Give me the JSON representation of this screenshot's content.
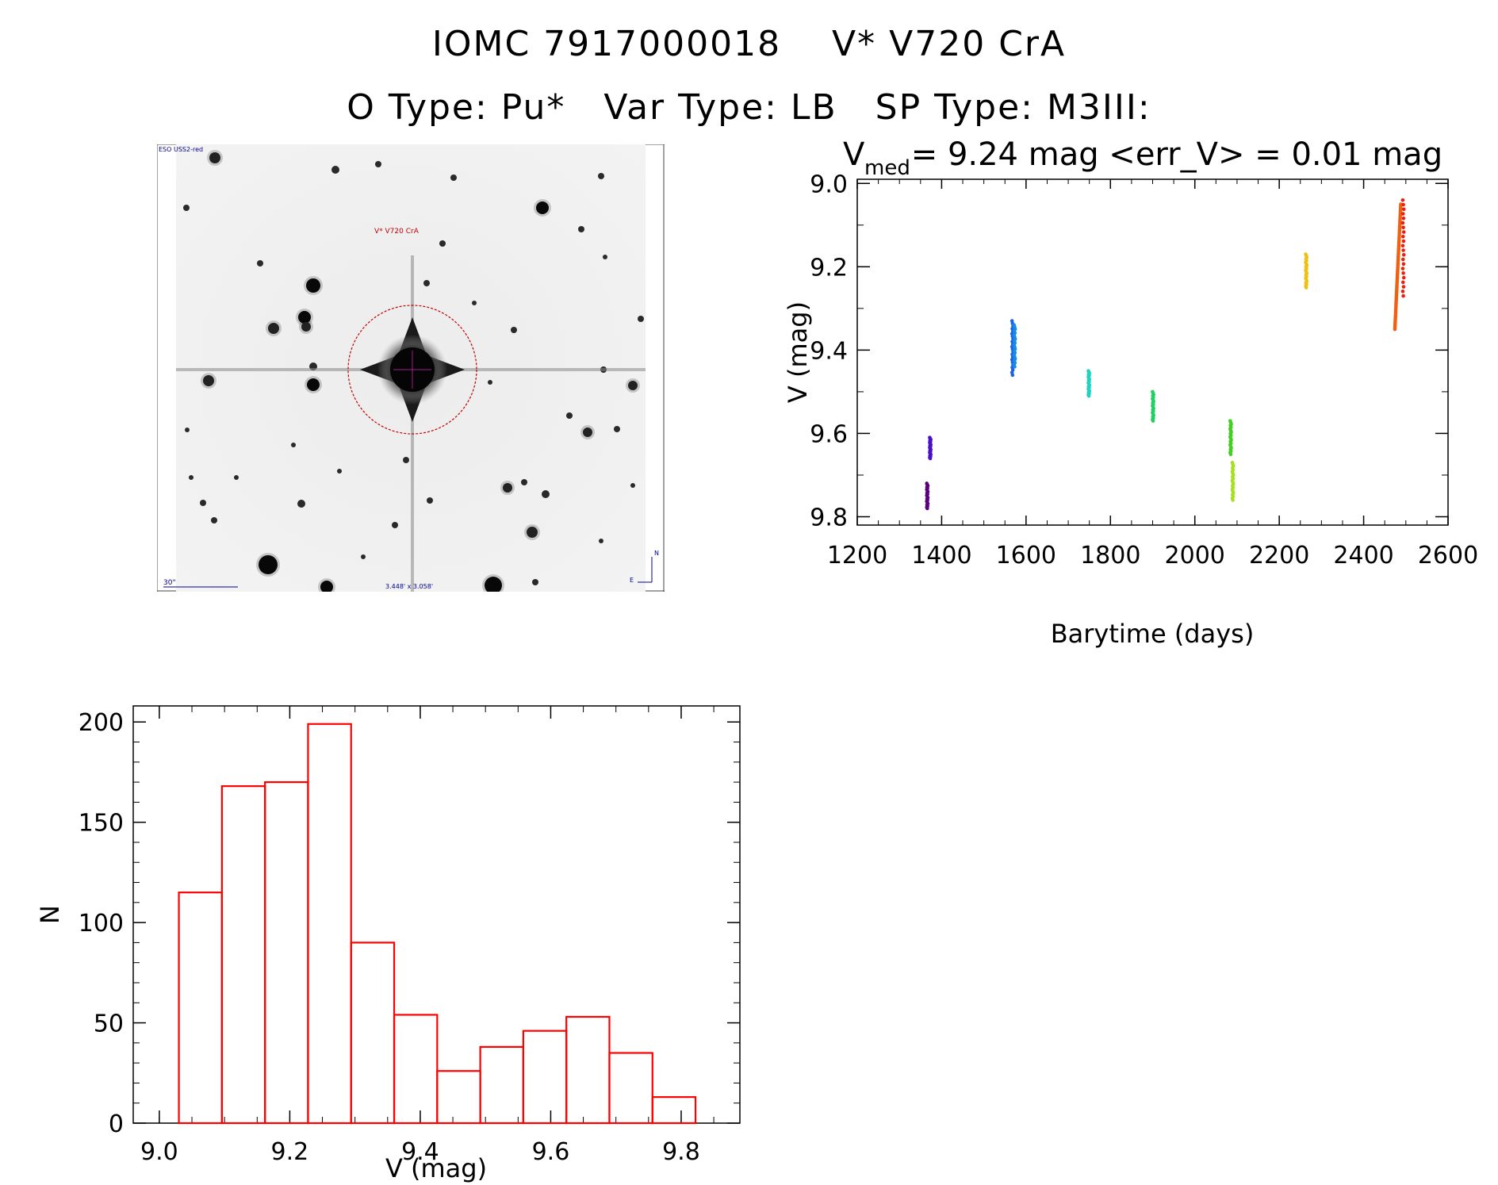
{
  "header": {
    "title_line1": "IOMC 7917000018    V* V720 CrA",
    "title_line2": "O Type: Pu*   Var Type: LB   SP Type: M3III:"
  },
  "finder": {
    "survey_label": "ESO USS2-red",
    "target_label": "V* V720 CrA",
    "scale_label": "30\"",
    "fov_label": "3.448' x 3.058'",
    "north_label": "N",
    "east_label": "E"
  },
  "lightcurve": {
    "stats_prefix": "V",
    "stats_sub": "med",
    "stats_rest": " = 9.24 mag <err_V> = 0.01 mag",
    "chart_data": {
      "type": "scatter",
      "xlabel": "Barytime (days)",
      "ylabel": "V (mag)",
      "xlim": [
        1200,
        2600
      ],
      "ylim": [
        9.82,
        8.99
      ],
      "y_inverted": true,
      "xticks": [
        1200,
        1400,
        1600,
        1800,
        2000,
        2200,
        2400,
        2600
      ],
      "yticks": [
        9.0,
        9.2,
        9.4,
        9.6,
        9.8
      ],
      "ytick_labels": [
        "9.0",
        "9.2",
        "9.4",
        "9.6",
        "9.8"
      ],
      "clusters": [
        {
          "x": 1366,
          "ymin": 9.72,
          "ymax": 9.78,
          "color": "#5a007a"
        },
        {
          "x": 1373,
          "ymin": 9.61,
          "ymax": 9.66,
          "color": "#4a10c8"
        },
        {
          "x": 1568,
          "ymin": 9.33,
          "ymax": 9.46,
          "color": "#1a62e6"
        },
        {
          "x": 1573,
          "ymin": 9.34,
          "ymax": 9.44,
          "color": "#1a8ae6"
        },
        {
          "x": 1749,
          "ymin": 9.45,
          "ymax": 9.51,
          "color": "#20d2c0"
        },
        {
          "x": 1901,
          "ymin": 9.5,
          "ymax": 9.57,
          "color": "#20d060"
        },
        {
          "x": 2085,
          "ymin": 9.57,
          "ymax": 9.65,
          "color": "#40d020"
        },
        {
          "x": 2090,
          "ymin": 9.67,
          "ymax": 9.76,
          "color": "#a8e020"
        },
        {
          "x": 2264,
          "ymin": 9.17,
          "ymax": 9.25,
          "color": "#f0c010"
        },
        {
          "x": 2474,
          "ymin": 9.05,
          "ymax": 9.35,
          "color": "#f06010",
          "slope": true
        },
        {
          "x": 2494,
          "ymin": 9.04,
          "ymax": 9.27,
          "color": "#e82010"
        }
      ]
    }
  },
  "histogram": {
    "chart_data": {
      "type": "bar",
      "xlabel": "V (mag)",
      "ylabel": "N",
      "xlim": [
        8.96,
        9.89
      ],
      "ylim": [
        0,
        208
      ],
      "xticks": [
        9.0,
        9.2,
        9.4,
        9.6,
        9.8
      ],
      "xtick_labels": [
        "9.0",
        "9.2",
        "9.4",
        "9.6",
        "9.8"
      ],
      "yticks": [
        0,
        50,
        100,
        150,
        200
      ],
      "bin_edges": [
        9.03,
        9.096,
        9.162,
        9.228,
        9.294,
        9.36,
        9.426,
        9.492,
        9.558,
        9.624,
        9.69,
        9.756,
        9.822
      ],
      "values": [
        115,
        168,
        170,
        199,
        90,
        54,
        26,
        38,
        46,
        53,
        35,
        13
      ],
      "bar_color": "#ff0000"
    }
  }
}
